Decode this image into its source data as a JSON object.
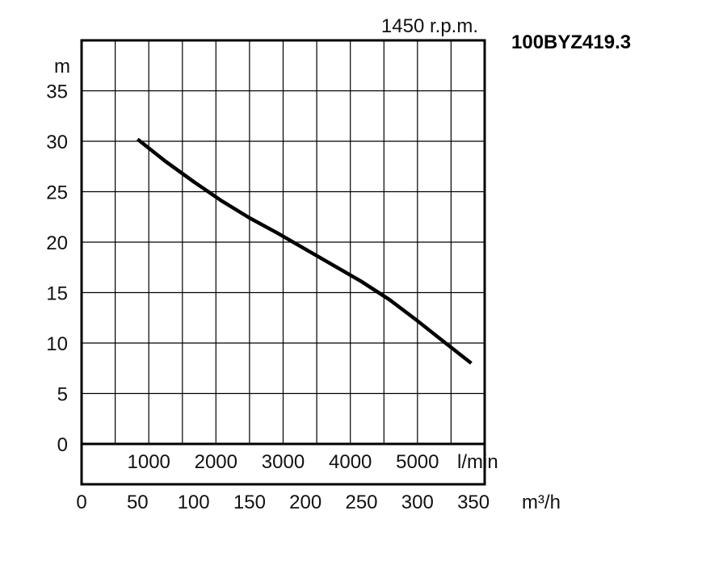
{
  "chart_data": {
    "type": "line",
    "model": "100BYZ419.3",
    "speed": "1450 r.p.m.",
    "ylabel": "m",
    "y_ticks": [
      "0",
      "5",
      "10",
      "15",
      "20",
      "25",
      "30",
      "35"
    ],
    "ylim": [
      0,
      40
    ],
    "x_unit_primary": "m³/h",
    "x_ticks_primary": [
      "0",
      "50",
      "100",
      "150",
      "200",
      "250",
      "300",
      "350"
    ],
    "xlim": [
      0,
      360
    ],
    "x_unit_secondary": "l/min",
    "x_ticks_secondary": [
      "1000",
      "2000",
      "3000",
      "4000",
      "5000"
    ],
    "grid": true,
    "series": [
      {
        "x": [
          50,
          75,
          100,
          125,
          150,
          175,
          200,
          225,
          250,
          275,
          300,
          325,
          348
        ],
        "y": [
          30.2,
          28.0,
          26.0,
          24.1,
          22.4,
          20.9,
          19.3,
          17.7,
          16.1,
          14.3,
          12.2,
          10.0,
          8.0
        ]
      }
    ]
  }
}
